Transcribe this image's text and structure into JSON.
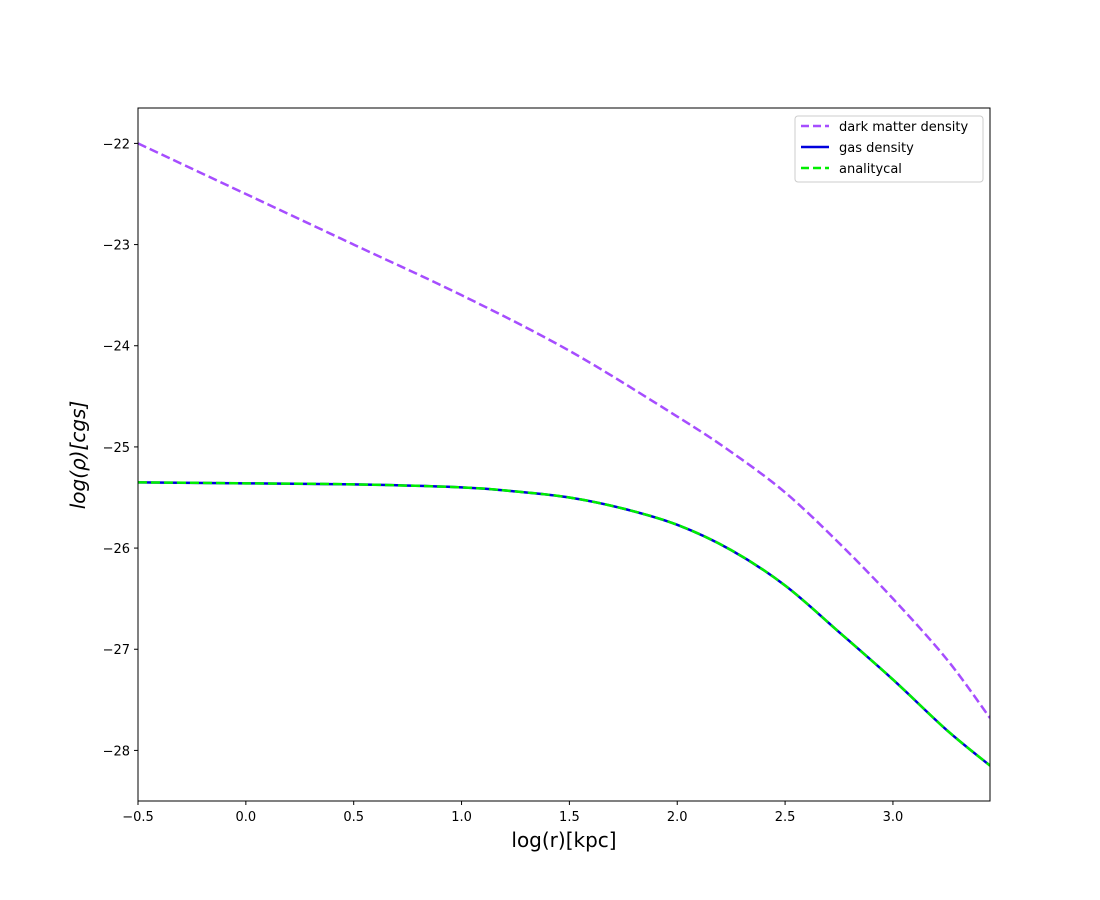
{
  "chart_data": {
    "type": "line",
    "xlabel": "log(r)[kpc]",
    "ylabel": "log(ρ)[cgs]",
    "xlim": [
      -0.5,
      3.45
    ],
    "ylim": [
      -28.5,
      -21.65
    ],
    "xticks": [
      -0.5,
      0.0,
      0.5,
      1.0,
      1.5,
      2.0,
      2.5,
      3.0
    ],
    "xtick_labels": [
      "−0.5",
      "0.0",
      "0.5",
      "1.0",
      "1.5",
      "2.0",
      "2.5",
      "3.0"
    ],
    "yticks": [
      -22,
      -23,
      -24,
      -25,
      -26,
      -27,
      -28
    ],
    "ytick_labels": [
      "−22",
      "−23",
      "−24",
      "−25",
      "−26",
      "−27",
      "−28"
    ],
    "grid": false,
    "legend_position": "top-right",
    "series": [
      {
        "name": "dark matter density",
        "color": "#a64dff",
        "style": "dashed",
        "x": [
          -0.5,
          0.0,
          0.5,
          1.0,
          1.5,
          2.0,
          2.25,
          2.5,
          2.75,
          3.0,
          3.25,
          3.45
        ],
        "y": [
          -22.0,
          -22.5,
          -23.0,
          -23.5,
          -24.05,
          -24.7,
          -25.05,
          -25.45,
          -25.95,
          -26.5,
          -27.1,
          -27.68
        ]
      },
      {
        "name": "gas density",
        "color": "#0000dd",
        "style": "solid",
        "x": [
          -0.5,
          0.0,
          0.5,
          1.0,
          1.25,
          1.5,
          1.75,
          2.0,
          2.25,
          2.5,
          2.75,
          3.0,
          3.25,
          3.45
        ],
        "y": [
          -25.35,
          -25.36,
          -25.37,
          -25.4,
          -25.44,
          -25.5,
          -25.61,
          -25.77,
          -26.02,
          -26.37,
          -26.83,
          -27.3,
          -27.8,
          -28.15
        ]
      },
      {
        "name": "analitycal",
        "color": "#00ee00",
        "style": "dashed",
        "x": [
          -0.5,
          0.0,
          0.5,
          1.0,
          1.25,
          1.5,
          1.75,
          2.0,
          2.25,
          2.5,
          2.75,
          3.0,
          3.25,
          3.45
        ],
        "y": [
          -25.35,
          -25.36,
          -25.37,
          -25.4,
          -25.44,
          -25.5,
          -25.61,
          -25.77,
          -26.02,
          -26.37,
          -26.83,
          -27.3,
          -27.8,
          -28.15
        ]
      }
    ]
  }
}
